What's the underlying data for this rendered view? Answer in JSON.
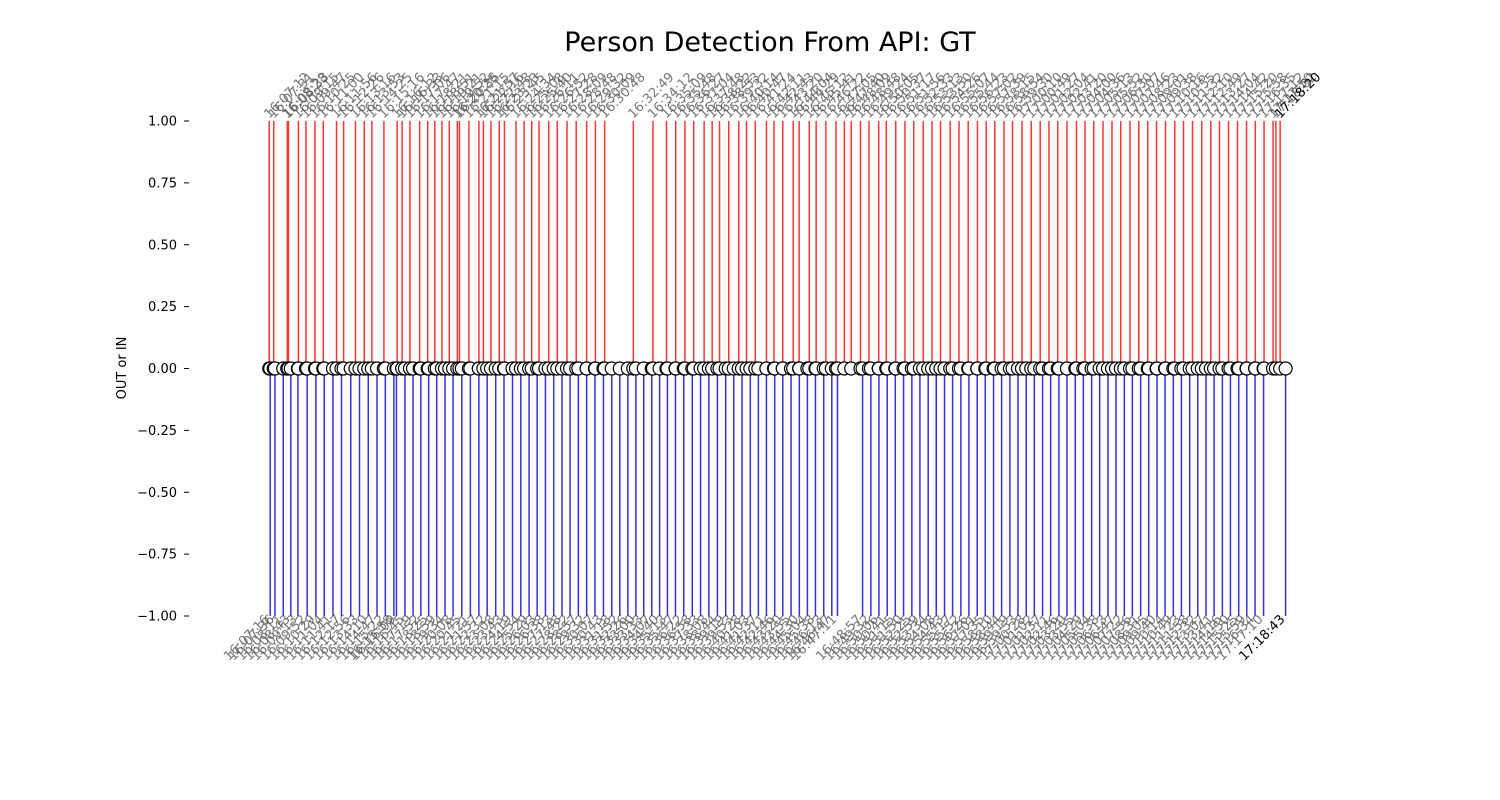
{
  "chart_data": {
    "type": "stem",
    "title": "Person Detection From API: GT",
    "xlabel": "",
    "ylabel": "OUT or IN",
    "ylim": [
      -1.0,
      1.0
    ],
    "yticks": [
      "1.00",
      "0.75",
      "0.50",
      "0.25",
      "0.00",
      "−0.25",
      "−0.50",
      "−0.75",
      "−1.00"
    ],
    "ytick_values": [
      1.0,
      0.75,
      0.5,
      0.25,
      0.0,
      -0.25,
      -0.5,
      -0.75,
      -1.0
    ],
    "xlim_seconds": [
      57900,
      62350
    ],
    "in_color": "#ff3333",
    "out_color": "#3333dd",
    "in_events": [
      "16:07:12",
      "16:07:31",
      "16:08:33",
      "16:08:28",
      "16:09:15",
      "16:09:47",
      "16:10:25",
      "16:11:00",
      "16:11:56",
      "16:12:26",
      "16:13:16",
      "16:13:53",
      "16:14:25",
      "16:15:16",
      "16:16:12",
      "16:16:33",
      "16:17:06",
      "16:17:47",
      "16:18:21",
      "16:18:51",
      "16:19:21",
      "16:19:52",
      "16:20:35",
      "16:20:26",
      "16:21:15",
      "16:21:57",
      "16:22:16",
      "16:22:48",
      "16:23:23",
      "16:23:45",
      "16:24:34",
      "16:25:08",
      "16:25:40",
      "16:26:11",
      "16:26:52",
      "16:27:28",
      "16:28:09",
      "16:28:48",
      "16:29:32",
      "16:30:09",
      "16:30:48",
      "16:32:49",
      "16:34:12",
      "16:35:09",
      "16:35:48",
      "16:36:27",
      "16:37:04",
      "16:37:48",
      "16:38:22",
      "16:38:53",
      "16:39:32",
      "16:40:14",
      "16:40:47",
      "16:41:24",
      "16:42:11",
      "16:42:43",
      "16:43:20",
      "16:44:04",
      "16:44:29",
      "16:45:12",
      "16:45:41",
      "16:46:22",
      "16:47:05",
      "16:47:40",
      "16:48:09",
      "16:48:48",
      "16:49:24",
      "16:50:05",
      "16:50:37",
      "16:51:17",
      "16:51:56",
      "16:52:33",
      "16:53:13",
      "16:53:50",
      "16:54:26",
      "16:55:07",
      "16:55:44",
      "16:56:23",
      "16:57:02",
      "16:57:39",
      "16:58:15",
      "16:58:54",
      "16:59:30",
      "17:00:10",
      "17:00:49",
      "17:01:27",
      "17:02:04",
      "17:02:41",
      "17:03:20",
      "17:04:00",
      "17:04:36",
      "17:05:13",
      "17:05:52",
      "17:06:30",
      "17:07:07",
      "17:07:46",
      "17:08:23",
      "17:09:01",
      "17:09:38",
      "17:10:16",
      "17:10:55",
      "17:11:32",
      "17:12:10",
      "17:12:49",
      "17:13:27",
      "17:14:04",
      "17:14:42",
      "17:15:20",
      "17:15:58",
      "17:16:35",
      "17:17:12",
      "17:17:50",
      "17:18:02",
      "17:18:20"
    ],
    "out_events": [
      "16:07:16",
      "16:07:36",
      "16:08:11",
      "16:08:43",
      "16:09:13",
      "16:09:52",
      "16:10:29",
      "16:11:04",
      "16:11:41",
      "16:12:17",
      "16:12:56",
      "16:13:33",
      "16:14:10",
      "16:14:47",
      "16:15:22",
      "16:15:58",
      "16:16:09",
      "16:16:45",
      "16:17:19",
      "16:17:52",
      "16:18:25",
      "16:18:59",
      "16:19:34",
      "16:20:08",
      "16:20:45",
      "16:21:21",
      "16:21:57",
      "16:22:32",
      "16:23:08",
      "16:23:43",
      "16:24:19",
      "16:24:54",
      "16:25:29",
      "16:26:03",
      "16:26:38",
      "16:27:13",
      "16:27:48",
      "16:28:22",
      "16:28:57",
      "16:29:32",
      "16:30:07",
      "16:30:43",
      "16:31:18",
      "16:31:52",
      "16:32:26",
      "16:33:00",
      "16:33:33",
      "16:34:07",
      "16:34:40",
      "16:35:13",
      "16:35:47",
      "16:36:22",
      "16:36:58",
      "16:37:33",
      "16:38:08",
      "16:38:44",
      "16:39:19",
      "16:39:53",
      "16:40:28",
      "16:41:03",
      "16:41:37",
      "16:42:11",
      "16:42:46",
      "16:43:20",
      "16:43:55",
      "16:44:30",
      "16:45:04",
      "16:45:38",
      "16:46:13",
      "16:46:47",
      "16:47:11",
      "16:48:57",
      "16:49:32",
      "16:50:06",
      "16:50:41",
      "16:51:15",
      "16:51:50",
      "16:52:25",
      "16:52:59",
      "16:53:34",
      "16:54:08",
      "16:54:43",
      "16:55:17",
      "16:55:52",
      "16:56:26",
      "16:57:01",
      "16:57:35",
      "16:58:10",
      "16:58:44",
      "16:59:19",
      "16:59:53",
      "17:00:28",
      "17:01:02",
      "17:01:37",
      "17:02:11",
      "17:02:46",
      "17:03:20",
      "17:03:55",
      "17:04:29",
      "17:05:04",
      "17:05:38",
      "17:06:13",
      "17:06:47",
      "17:07:22",
      "17:07:56",
      "17:08:31",
      "17:09:05",
      "17:09:40",
      "17:10:14",
      "17:10:49",
      "17:11:23",
      "17:11:58",
      "17:12:32",
      "17:13:07",
      "17:13:41",
      "17:14:16",
      "17:14:50",
      "17:15:25",
      "17:15:59",
      "17:16:34",
      "17:17:10",
      "17:18:43"
    ]
  }
}
